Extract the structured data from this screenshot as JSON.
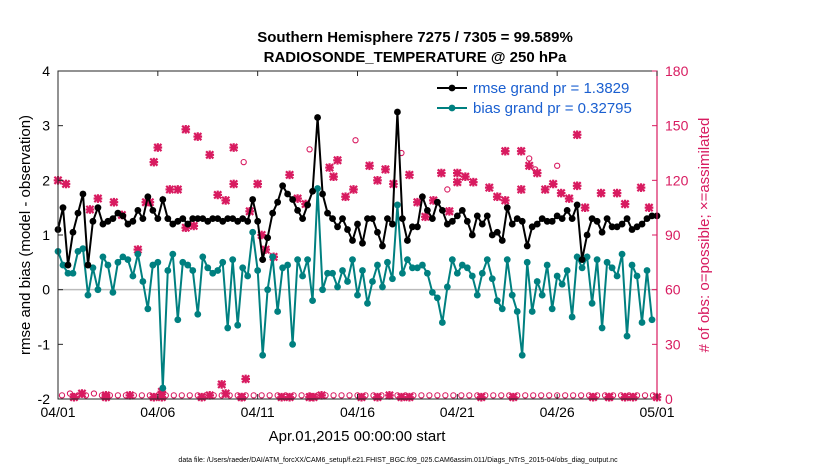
{
  "chart_data": {
    "type": "line",
    "title": "Southern Hemisphere 7275 / 7305 = 99.589%",
    "subtitle": "RADIOSONDE_TEMPERATURE @ 250 hPa",
    "xlabel": "Apr.01,2015 00:00:00 start",
    "ylabel_left": "rmse and bias (model - observation)",
    "ylabel_right": "# of obs: o=possible; ×=assimilated",
    "footer": "data file: /Users/raeder/DAI/ATM_forcXX/CAM6_setup/f.e21.FHIST_BGC.f09_025.CAM6assim.011/Diags_NTrS_2015-04/obs_diag_output.nc",
    "x_tick_labels": [
      "04/01",
      "04/06",
      "04/11",
      "04/16",
      "04/21",
      "04/26",
      "05/01"
    ],
    "x_tick_days": [
      0,
      5,
      10,
      15,
      20,
      25,
      30
    ],
    "xlim_days": [
      0,
      30
    ],
    "ylim_left": [
      -2,
      4
    ],
    "yticks_left": [
      "-2",
      "-1",
      "0",
      "1",
      "2",
      "3",
      "4"
    ],
    "ylim_right": [
      0,
      180
    ],
    "yticks_right": [
      "0",
      "30",
      "60",
      "90",
      "120",
      "150",
      "180"
    ],
    "zero_line": 0,
    "legend": {
      "position": "top-right",
      "entries": [
        {
          "label": "rmse grand pr = 1.3829",
          "color": "#000000"
        },
        {
          "label": "bias grand pr = 0.32795",
          "color": "#008080"
        }
      ]
    },
    "colors": {
      "rmse": "#000000",
      "bias": "#008080",
      "obs": "#d81b60",
      "zero": "#bbbbbb",
      "right_axis": "#d81b60"
    },
    "rmse": [
      [
        0,
        1.1
      ],
      [
        0.25,
        1.5
      ],
      [
        0.5,
        0.45
      ],
      [
        0.75,
        1.05
      ],
      [
        1,
        1.4
      ],
      [
        1.25,
        1.75
      ],
      [
        1.5,
        0.45
      ],
      [
        1.75,
        1.25
      ],
      [
        2.0,
        1.5
      ],
      [
        2.25,
        1.2
      ],
      [
        2.5,
        1.25
      ],
      [
        2.75,
        1.3
      ],
      [
        3.0,
        1.4
      ],
      [
        3.25,
        1.35
      ],
      [
        3.5,
        1.2
      ],
      [
        3.75,
        1.25
      ],
      [
        4.0,
        1.45
      ],
      [
        4.25,
        1.3
      ],
      [
        4.5,
        1.7
      ],
      [
        4.75,
        1.45
      ],
      [
        5.0,
        1.3
      ],
      [
        5.25,
        1.65
      ],
      [
        5.5,
        1.3
      ],
      [
        5.75,
        1.2
      ],
      [
        6.0,
        1.25
      ],
      [
        6.25,
        1.3
      ],
      [
        6.5,
        1.2
      ],
      [
        6.75,
        1.3
      ],
      [
        7.0,
        1.3
      ],
      [
        7.25,
        1.3
      ],
      [
        7.5,
        1.25
      ],
      [
        7.75,
        1.3
      ],
      [
        8.0,
        1.3
      ],
      [
        8.25,
        1.25
      ],
      [
        8.5,
        1.3
      ],
      [
        8.75,
        1.3
      ],
      [
        9.0,
        1.25
      ],
      [
        9.25,
        1.3
      ],
      [
        9.5,
        1.25
      ],
      [
        9.75,
        1.65
      ],
      [
        10.0,
        1.25
      ],
      [
        10.25,
        0.55
      ],
      [
        10.5,
        0.95
      ],
      [
        10.75,
        1.4
      ],
      [
        11.0,
        1.6
      ],
      [
        11.25,
        1.9
      ],
      [
        11.5,
        1.75
      ],
      [
        11.75,
        1.65
      ],
      [
        12.0,
        1.45
      ],
      [
        12.25,
        1.3
      ],
      [
        12.5,
        1.55
      ],
      [
        12.75,
        1.8
      ],
      [
        13.0,
        3.15
      ],
      [
        13.25,
        1.75
      ],
      [
        13.5,
        1.4
      ],
      [
        13.75,
        1.3
      ],
      [
        14.0,
        1.15
      ],
      [
        14.25,
        1.3
      ],
      [
        14.5,
        1.1
      ],
      [
        14.75,
        0.9
      ],
      [
        15.0,
        1.2
      ],
      [
        15.25,
        0.85
      ],
      [
        15.5,
        1.3
      ],
      [
        15.75,
        1.3
      ],
      [
        16.0,
        1.05
      ],
      [
        16.25,
        0.8
      ],
      [
        16.5,
        1.3
      ],
      [
        16.75,
        1.2
      ],
      [
        17.0,
        3.25
      ],
      [
        17.25,
        1.3
      ],
      [
        17.5,
        0.9
      ],
      [
        17.75,
        1.15
      ],
      [
        18.0,
        1.15
      ],
      [
        18.25,
        1.7
      ],
      [
        18.5,
        1.45
      ],
      [
        18.75,
        1.3
      ],
      [
        19.0,
        1.6
      ],
      [
        19.25,
        1.45
      ],
      [
        19.5,
        1.2
      ],
      [
        19.75,
        1.25
      ],
      [
        20.0,
        1.35
      ],
      [
        20.25,
        1.45
      ],
      [
        20.5,
        1.25
      ],
      [
        20.75,
        1.0
      ],
      [
        21.0,
        1.35
      ],
      [
        21.25,
        1.2
      ],
      [
        21.5,
        1.35
      ],
      [
        21.75,
        1.0
      ],
      [
        22.0,
        1.05
      ],
      [
        22.25,
        0.9
      ],
      [
        22.5,
        1.5
      ],
      [
        22.75,
        1.2
      ],
      [
        23.0,
        1.3
      ],
      [
        23.25,
        1.25
      ],
      [
        23.5,
        0.8
      ],
      [
        23.75,
        1.15
      ],
      [
        24.0,
        1.2
      ],
      [
        24.25,
        1.3
      ],
      [
        24.5,
        1.25
      ],
      [
        24.75,
        1.25
      ],
      [
        25.0,
        1.35
      ],
      [
        25.25,
        1.3
      ],
      [
        25.5,
        1.45
      ],
      [
        25.75,
        1.3
      ],
      [
        26.0,
        1.55
      ],
      [
        26.25,
        0.55
      ],
      [
        26.5,
        1.0
      ],
      [
        26.75,
        1.3
      ],
      [
        27.0,
        1.25
      ],
      [
        27.25,
        1.05
      ],
      [
        27.5,
        1.3
      ],
      [
        27.75,
        1.15
      ],
      [
        28.0,
        1.15
      ],
      [
        28.25,
        1.2
      ],
      [
        28.5,
        1.3
      ],
      [
        28.75,
        1.1
      ],
      [
        29.0,
        1.15
      ],
      [
        29.25,
        1.2
      ],
      [
        29.5,
        1.3
      ],
      [
        29.75,
        1.35
      ],
      [
        30.0,
        1.35
      ]
    ],
    "bias": [
      [
        0,
        0.7
      ],
      [
        0.25,
        0.45
      ],
      [
        0.5,
        0.3
      ],
      [
        0.75,
        0.3
      ],
      [
        1,
        0.7
      ],
      [
        1.25,
        0.75
      ],
      [
        1.5,
        -0.1
      ],
      [
        1.75,
        0.4
      ],
      [
        2.0,
        0.0
      ],
      [
        2.25,
        0.6
      ],
      [
        2.5,
        0.45
      ],
      [
        2.75,
        -0.05
      ],
      [
        3.0,
        0.5
      ],
      [
        3.25,
        0.6
      ],
      [
        3.5,
        0.55
      ],
      [
        3.75,
        0.25
      ],
      [
        4.0,
        0.65
      ],
      [
        4.25,
        0.15
      ],
      [
        4.5,
        -0.35
      ],
      [
        4.75,
        0.45
      ],
      [
        5.0,
        0.5
      ],
      [
        5.25,
        -1.8
      ],
      [
        5.5,
        0.35
      ],
      [
        5.75,
        0.65
      ],
      [
        6.0,
        -0.55
      ],
      [
        6.25,
        0.5
      ],
      [
        6.5,
        0.45
      ],
      [
        6.75,
        0.35
      ],
      [
        7.0,
        -0.45
      ],
      [
        7.25,
        0.6
      ],
      [
        7.5,
        0.4
      ],
      [
        7.75,
        0.3
      ],
      [
        8.0,
        0.35
      ],
      [
        8.25,
        0.5
      ],
      [
        8.5,
        -0.7
      ],
      [
        8.75,
        0.55
      ],
      [
        9.0,
        -0.65
      ],
      [
        9.25,
        0.4
      ],
      [
        9.5,
        0.25
      ],
      [
        9.75,
        1.05
      ],
      [
        10.0,
        0.35
      ],
      [
        10.25,
        -1.2
      ],
      [
        10.5,
        0.0
      ],
      [
        10.75,
        0.6
      ],
      [
        11.0,
        -0.4
      ],
      [
        11.25,
        0.4
      ],
      [
        11.5,
        0.45
      ],
      [
        11.75,
        -1.0
      ],
      [
        12.0,
        0.55
      ],
      [
        12.25,
        0.25
      ],
      [
        12.5,
        0.55
      ],
      [
        12.75,
        -0.2
      ],
      [
        13.0,
        1.85
      ],
      [
        13.25,
        0.0
      ],
      [
        13.5,
        0.3
      ],
      [
        13.75,
        0.3
      ],
      [
        14.0,
        0.05
      ],
      [
        14.25,
        0.35
      ],
      [
        14.5,
        0.15
      ],
      [
        14.75,
        0.55
      ],
      [
        15.0,
        -0.1
      ],
      [
        15.25,
        0.35
      ],
      [
        15.5,
        -0.25
      ],
      [
        15.75,
        0.15
      ],
      [
        16.0,
        0.45
      ],
      [
        16.25,
        0.05
      ],
      [
        16.5,
        0.5
      ],
      [
        16.75,
        0.2
      ],
      [
        17.0,
        1.55
      ],
      [
        17.25,
        0.3
      ],
      [
        17.5,
        0.55
      ],
      [
        17.75,
        0.4
      ],
      [
        18.0,
        0.4
      ],
      [
        18.25,
        0.45
      ],
      [
        18.5,
        0.3
      ],
      [
        18.75,
        -0.05
      ],
      [
        19.0,
        -0.15
      ],
      [
        19.25,
        -0.6
      ],
      [
        19.5,
        0.05
      ],
      [
        19.75,
        0.55
      ],
      [
        20.0,
        0.3
      ],
      [
        20.25,
        0.45
      ],
      [
        20.5,
        0.4
      ],
      [
        20.75,
        0.25
      ],
      [
        21.0,
        -0.1
      ],
      [
        21.25,
        0.3
      ],
      [
        21.5,
        0.55
      ],
      [
        21.75,
        0.2
      ],
      [
        22.0,
        -0.2
      ],
      [
        22.25,
        -0.35
      ],
      [
        22.5,
        0.55
      ],
      [
        22.75,
        -0.1
      ],
      [
        23.0,
        -0.4
      ],
      [
        23.25,
        -1.2
      ],
      [
        23.5,
        0.5
      ],
      [
        23.75,
        -0.4
      ],
      [
        24.0,
        0.15
      ],
      [
        24.25,
        -0.1
      ],
      [
        24.5,
        0.45
      ],
      [
        24.75,
        -0.35
      ],
      [
        25.0,
        0.25
      ],
      [
        25.25,
        0.1
      ],
      [
        25.5,
        0.35
      ],
      [
        25.75,
        -0.5
      ],
      [
        26.0,
        0.6
      ],
      [
        26.25,
        0.4
      ],
      [
        26.5,
        0.6
      ],
      [
        26.75,
        -0.25
      ],
      [
        27.0,
        0.55
      ],
      [
        27.25,
        -0.7
      ],
      [
        27.5,
        0.5
      ],
      [
        27.75,
        0.4
      ],
      [
        28.0,
        0.25
      ],
      [
        28.25,
        0.65
      ],
      [
        28.5,
        -0.85
      ],
      [
        28.75,
        0.45
      ],
      [
        29.0,
        0.25
      ],
      [
        29.25,
        -0.6
      ],
      [
        29.5,
        0.35
      ],
      [
        29.75,
        -0.55
      ]
    ],
    "obs_possible": [
      [
        0.2,
        2
      ],
      [
        0.6,
        3
      ],
      [
        1.0,
        2
      ],
      [
        1.4,
        2
      ],
      [
        1.8,
        3
      ],
      [
        2.2,
        2
      ],
      [
        2.6,
        2
      ],
      [
        3.0,
        2
      ],
      [
        3.4,
        2
      ],
      [
        3.8,
        2
      ],
      [
        4.2,
        2
      ],
      [
        4.6,
        2
      ],
      [
        5.0,
        2
      ],
      [
        5.4,
        2
      ],
      [
        5.8,
        2
      ],
      [
        6.2,
        2
      ],
      [
        6.6,
        2
      ],
      [
        7.0,
        2
      ],
      [
        7.4,
        2
      ],
      [
        7.8,
        2
      ],
      [
        8.2,
        2
      ],
      [
        8.6,
        2
      ],
      [
        9.0,
        2
      ],
      [
        9.4,
        2
      ],
      [
        9.8,
        2
      ],
      [
        10.2,
        2
      ],
      [
        10.6,
        2
      ],
      [
        11.0,
        2
      ],
      [
        11.4,
        2
      ],
      [
        11.8,
        2
      ],
      [
        12.2,
        2
      ],
      [
        12.6,
        2
      ],
      [
        13.0,
        2
      ],
      [
        13.4,
        2
      ],
      [
        13.8,
        2
      ],
      [
        14.2,
        2
      ],
      [
        14.6,
        2
      ],
      [
        15.0,
        2
      ],
      [
        15.4,
        2
      ],
      [
        15.8,
        2
      ],
      [
        16.2,
        2
      ],
      [
        16.6,
        2
      ],
      [
        17.0,
        2
      ],
      [
        17.4,
        2
      ],
      [
        17.8,
        2
      ],
      [
        18.2,
        2
      ],
      [
        18.6,
        2
      ],
      [
        19.0,
        2
      ],
      [
        19.4,
        2
      ],
      [
        19.8,
        2
      ],
      [
        20.2,
        2
      ],
      [
        20.6,
        2
      ],
      [
        21.0,
        2
      ],
      [
        21.4,
        2
      ],
      [
        21.8,
        2
      ],
      [
        22.2,
        2
      ],
      [
        22.6,
        2
      ],
      [
        23.0,
        2
      ],
      [
        23.4,
        2
      ],
      [
        23.8,
        2
      ],
      [
        24.2,
        2
      ],
      [
        24.6,
        2
      ],
      [
        25.0,
        2
      ],
      [
        25.4,
        2
      ],
      [
        25.8,
        2
      ],
      [
        26.2,
        2
      ],
      [
        26.6,
        2
      ],
      [
        27.0,
        2
      ],
      [
        27.4,
        2
      ],
      [
        27.8,
        2
      ],
      [
        28.2,
        2
      ],
      [
        28.6,
        2
      ],
      [
        29.0,
        2
      ],
      [
        29.4,
        2
      ],
      [
        29.8,
        2
      ],
      [
        9.3,
        130
      ],
      [
        12.6,
        137
      ],
      [
        14.9,
        142
      ],
      [
        17.2,
        135
      ],
      [
        19.5,
        115
      ],
      [
        23.6,
        132
      ],
      [
        23.9,
        126
      ],
      [
        25.0,
        128
      ]
    ],
    "obs_assimilated": [
      [
        0.0,
        120
      ],
      [
        0.4,
        118
      ],
      [
        0.8,
        1
      ],
      [
        1.2,
        3
      ],
      [
        1.6,
        104
      ],
      [
        2.0,
        110
      ],
      [
        2.4,
        1
      ],
      [
        2.8,
        108
      ],
      [
        3.2,
        101
      ],
      [
        3.6,
        2
      ],
      [
        4.0,
        82
      ],
      [
        4.4,
        108
      ],
      [
        4.8,
        1
      ],
      [
        5.2,
        4
      ],
      [
        5.6,
        115
      ],
      [
        6.0,
        115
      ],
      [
        6.4,
        94
      ],
      [
        6.8,
        95
      ],
      [
        7.2,
        1
      ],
      [
        7.6,
        2
      ],
      [
        8.0,
        112
      ],
      [
        8.4,
        3
      ],
      [
        8.8,
        118
      ],
      [
        9.2,
        1
      ],
      [
        9.6,
        103
      ],
      [
        10.0,
        118
      ],
      [
        10.4,
        82
      ],
      [
        10.8,
        78
      ],
      [
        11.2,
        1
      ],
      [
        11.6,
        123
      ],
      [
        12.0,
        110
      ],
      [
        12.4,
        107
      ],
      [
        12.8,
        1
      ],
      [
        13.2,
        2
      ],
      [
        13.6,
        127
      ],
      [
        14.0,
        131
      ],
      [
        14.4,
        111
      ],
      [
        14.8,
        115
      ],
      [
        15.2,
        1
      ],
      [
        15.6,
        128
      ],
      [
        16.0,
        120
      ],
      [
        16.4,
        126
      ],
      [
        16.8,
        118
      ],
      [
        17.2,
        1
      ],
      [
        17.6,
        123
      ],
      [
        18.0,
        108
      ],
      [
        18.4,
        100
      ],
      [
        18.8,
        109
      ],
      [
        19.2,
        124
      ],
      [
        19.6,
        103
      ],
      [
        20.0,
        119
      ],
      [
        20.4,
        122
      ],
      [
        20.8,
        119
      ],
      [
        21.2,
        1
      ],
      [
        21.6,
        116
      ],
      [
        22.0,
        111
      ],
      [
        22.4,
        109
      ],
      [
        22.8,
        1
      ],
      [
        23.2,
        115
      ],
      [
        23.6,
        128
      ],
      [
        24.0,
        124
      ],
      [
        24.4,
        115
      ],
      [
        24.8,
        118
      ],
      [
        25.2,
        113
      ],
      [
        25.6,
        110
      ],
      [
        26.0,
        117
      ],
      [
        26.4,
        105
      ],
      [
        26.8,
        1
      ],
      [
        27.2,
        113
      ],
      [
        27.6,
        1
      ],
      [
        28.0,
        113
      ],
      [
        28.4,
        107
      ],
      [
        28.8,
        1
      ],
      [
        29.2,
        116
      ],
      [
        29.6,
        105
      ],
      [
        30.0,
        1
      ],
      [
        5.0,
        138
      ],
      [
        6.4,
        148
      ],
      [
        7.0,
        144
      ],
      [
        7.6,
        134
      ],
      [
        8.4,
        109
      ],
      [
        8.8,
        138
      ],
      [
        9.2,
        1
      ],
      [
        2.4,
        2
      ],
      [
        4.6,
        108
      ],
      [
        5.2,
        1
      ],
      [
        26.0,
        145
      ],
      [
        11.6,
        1
      ],
      [
        12.6,
        1
      ],
      [
        13.8,
        122
      ],
      [
        16.6,
        2
      ],
      [
        8.2,
        8
      ],
      [
        9.4,
        11
      ],
      [
        10.2,
        90
      ],
      [
        16.0,
        1
      ],
      [
        17.6,
        1
      ],
      [
        20.0,
        124
      ],
      [
        22.4,
        136
      ],
      [
        23.2,
        136
      ],
      [
        27.6,
        1
      ],
      [
        28.4,
        1
      ],
      [
        4.8,
        130
      ]
    ]
  }
}
